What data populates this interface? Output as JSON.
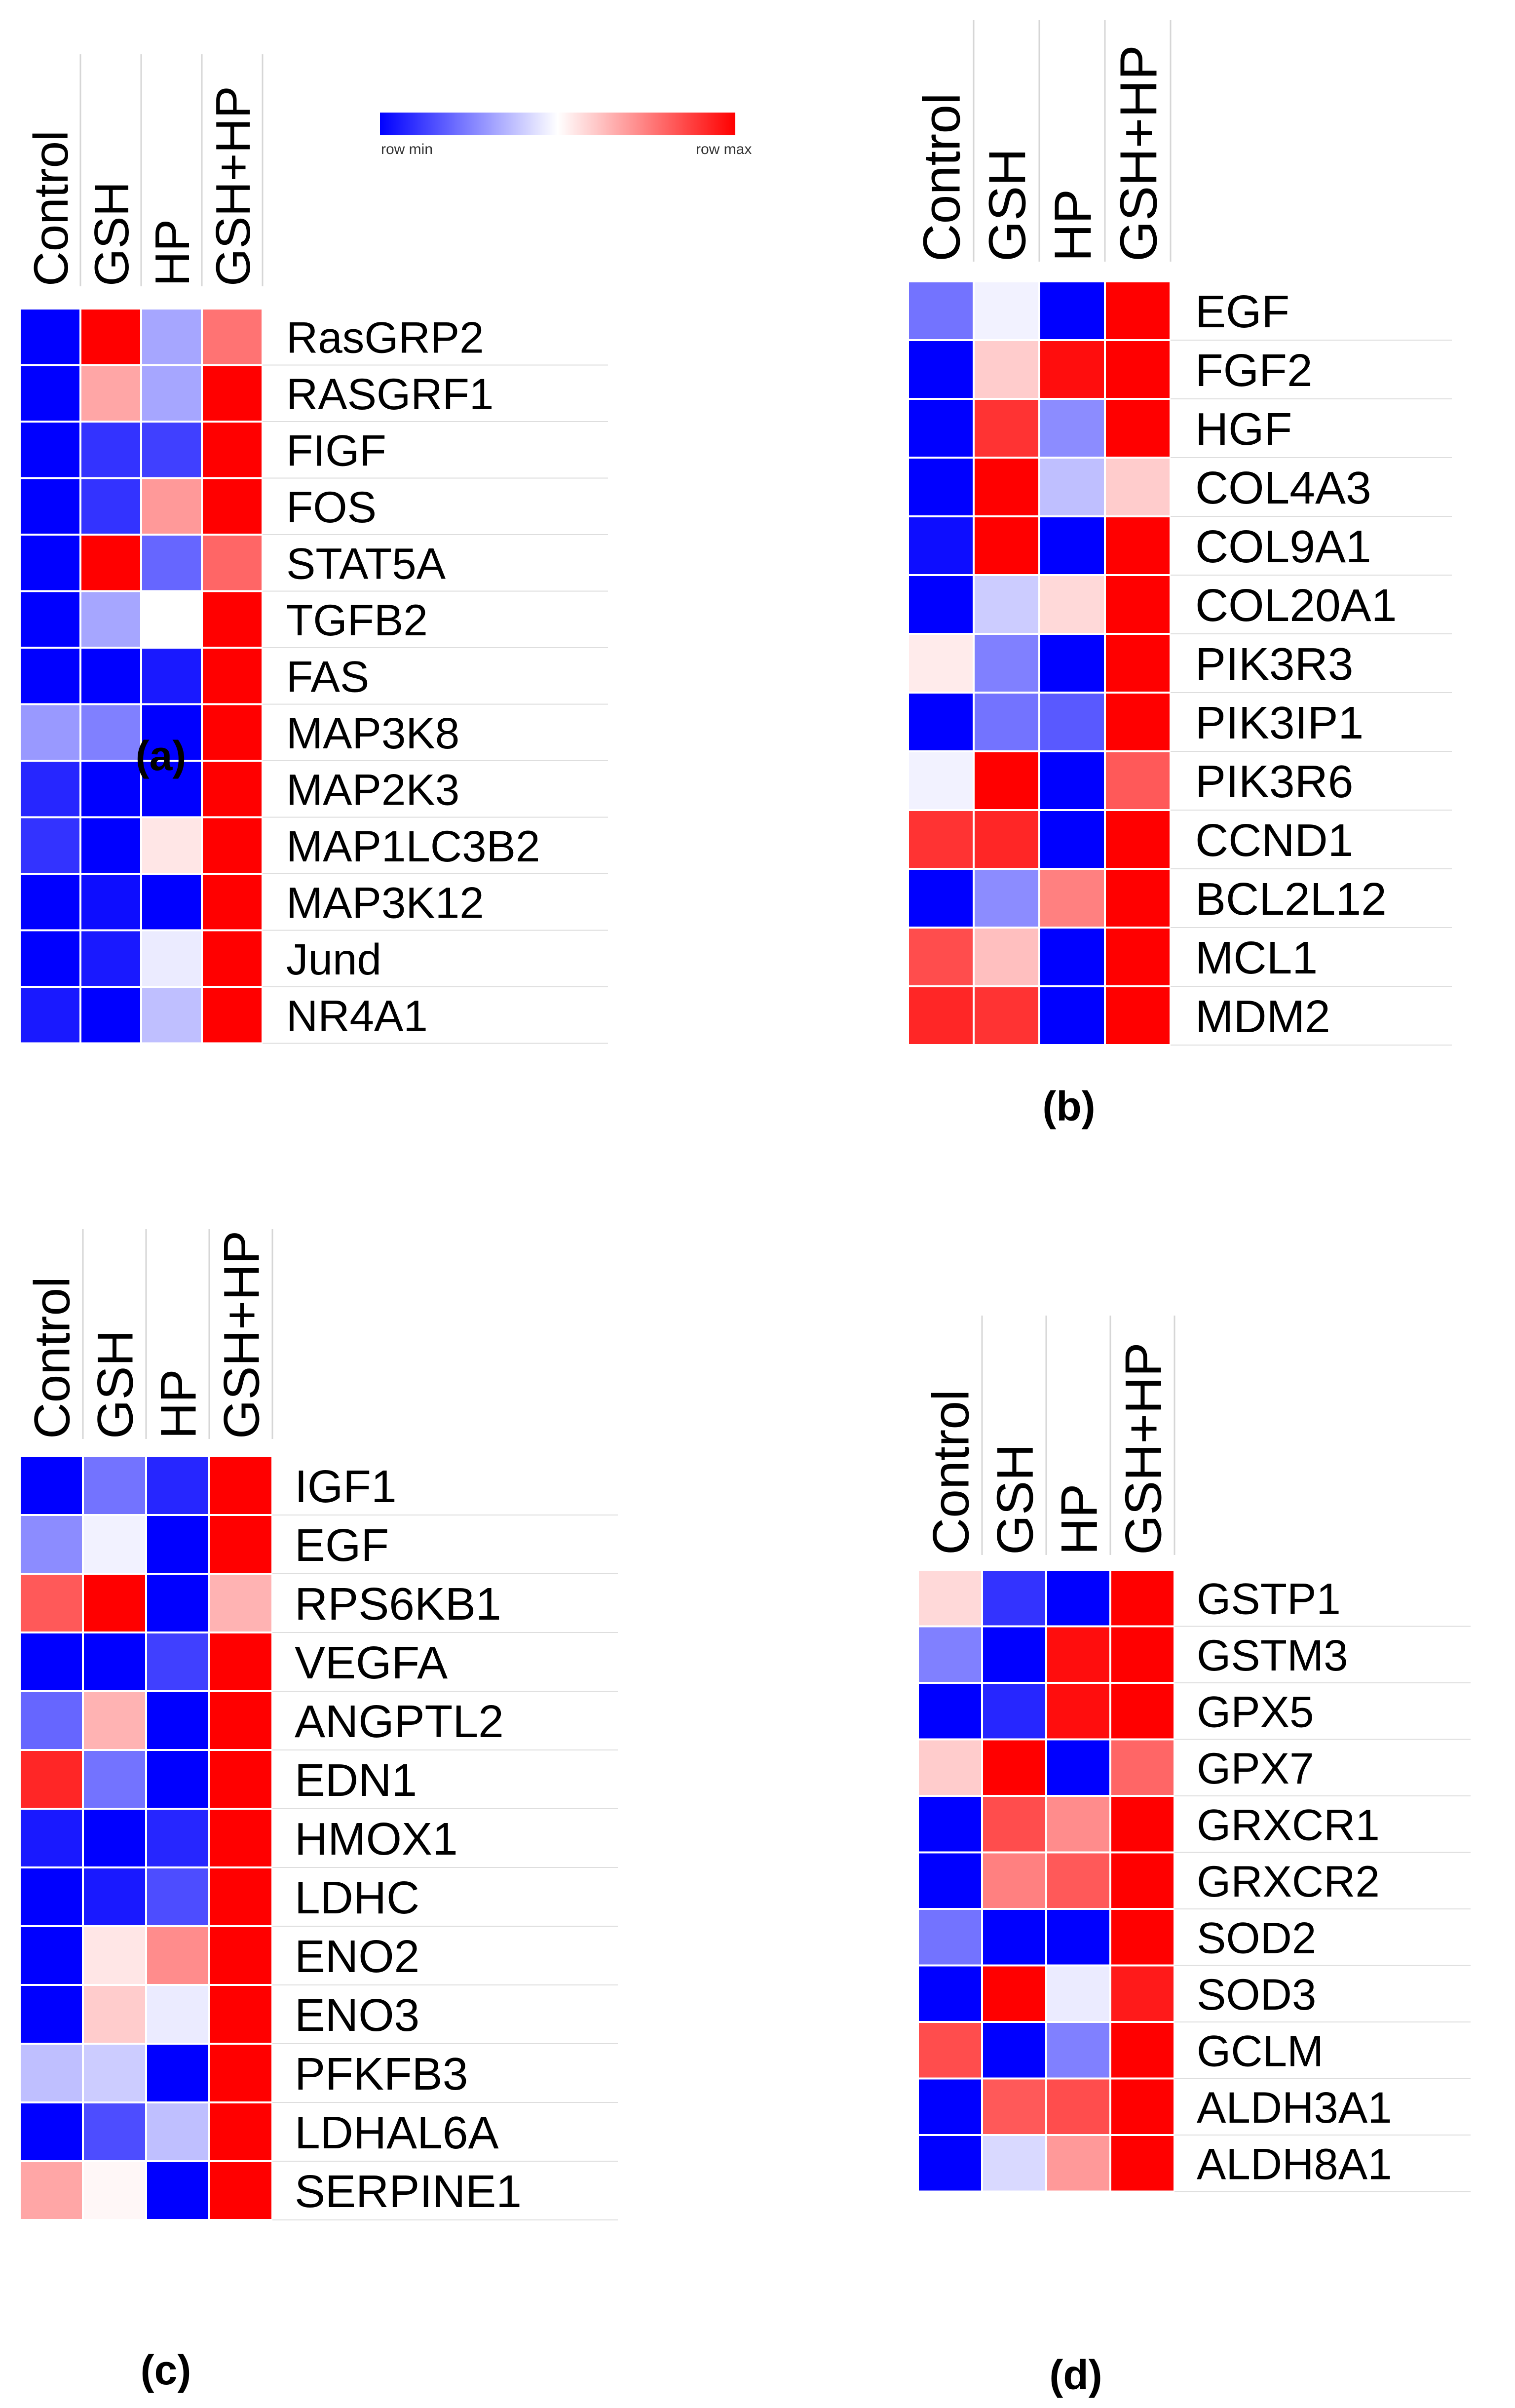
{
  "legend": {
    "min_label": "row min",
    "max_label": "row max",
    "colors": [
      "#0000ff",
      "#ffffff",
      "#ff0000"
    ]
  },
  "chart_data": [
    {
      "type": "heatmap",
      "panel": "(a)",
      "columns": [
        "Control",
        "GSH",
        "HP",
        "GSH+HP"
      ],
      "rows": [
        "RasGRP2",
        "RASGRF1",
        "FIGF",
        "FOS",
        "STAT5A",
        "TGFB2",
        "FAS",
        "MAP3K8",
        "MAP2K3",
        "MAP1LC3B2",
        "MAP3K12",
        "Jund",
        "NR4A1"
      ],
      "values": [
        [
          -1.0,
          1.0,
          -0.35,
          0.55
        ],
        [
          -1.0,
          0.35,
          -0.35,
          1.0
        ],
        [
          -1.0,
          -0.8,
          -0.75,
          1.0
        ],
        [
          -1.0,
          -0.8,
          0.4,
          1.0
        ],
        [
          -1.0,
          1.0,
          -0.6,
          0.6
        ],
        [
          -1.0,
          -0.35,
          0.0,
          1.0
        ],
        [
          -1.0,
          -1.0,
          -0.9,
          1.0
        ],
        [
          -0.4,
          -0.5,
          -1.0,
          1.0
        ],
        [
          -0.85,
          -1.0,
          -1.0,
          1.0
        ],
        [
          -0.8,
          -1.0,
          0.1,
          1.0
        ],
        [
          -1.0,
          -0.95,
          -1.0,
          1.0
        ],
        [
          -1.0,
          -0.9,
          -0.08,
          1.0
        ],
        [
          -0.9,
          -1.0,
          -0.25,
          1.0
        ]
      ]
    },
    {
      "type": "heatmap",
      "panel": "(b)",
      "columns": [
        "Control",
        "GSH",
        "HP",
        "GSH+HP"
      ],
      "rows": [
        "EGF",
        "FGF2",
        "HGF",
        "COL4A3",
        "COL9A1",
        "COL20A1",
        "PIK3R3",
        "PIK3IP1",
        "PIK3R6",
        "CCND1",
        "BCL2L12",
        "MCL1",
        "MDM2"
      ],
      "values": [
        [
          -0.55,
          -0.05,
          -1.0,
          1.0
        ],
        [
          -1.0,
          0.2,
          0.95,
          1.0
        ],
        [
          -1.0,
          0.8,
          -0.45,
          1.0
        ],
        [
          -1.0,
          1.0,
          -0.25,
          0.2
        ],
        [
          -0.95,
          1.0,
          -1.0,
          1.0
        ],
        [
          -1.0,
          -0.2,
          0.15,
          1.0
        ],
        [
          0.08,
          -0.5,
          -1.0,
          1.0
        ],
        [
          -1.0,
          -0.55,
          -0.65,
          1.0
        ],
        [
          -0.05,
          1.0,
          -1.0,
          0.65
        ],
        [
          0.8,
          0.85,
          -1.0,
          1.0
        ],
        [
          -1.0,
          -0.45,
          0.5,
          1.0
        ],
        [
          0.7,
          0.25,
          -1.0,
          1.0
        ],
        [
          0.85,
          0.8,
          -1.0,
          1.0
        ]
      ]
    },
    {
      "type": "heatmap",
      "panel": "(c)",
      "columns": [
        "Control",
        "GSH",
        "HP",
        "GSH+HP"
      ],
      "rows": [
        "IGF1",
        "EGF",
        "RPS6KB1",
        "VEGFA",
        "ANGPTL2",
        "EDN1",
        "HMOX1",
        "LDHC",
        "ENO2",
        "ENO3",
        "PFKFB3",
        "LDHAL6A",
        "SERPINE1"
      ],
      "values": [
        [
          -1.0,
          -0.55,
          -0.85,
          1.0
        ],
        [
          -0.45,
          -0.05,
          -1.0,
          1.0
        ],
        [
          0.65,
          1.0,
          -1.0,
          0.3
        ],
        [
          -1.0,
          -1.0,
          -0.75,
          1.0
        ],
        [
          -0.6,
          0.3,
          -1.0,
          1.0
        ],
        [
          0.85,
          -0.55,
          -1.0,
          1.0
        ],
        [
          -0.9,
          -1.0,
          -0.85,
          1.0
        ],
        [
          -1.0,
          -0.9,
          -0.7,
          1.0
        ],
        [
          -1.0,
          0.1,
          0.45,
          1.0
        ],
        [
          -1.0,
          0.2,
          -0.08,
          1.0
        ],
        [
          -0.25,
          -0.2,
          -1.0,
          1.0
        ],
        [
          -1.0,
          -0.7,
          -0.25,
          1.0
        ],
        [
          0.35,
          0.03,
          -1.0,
          1.0
        ]
      ]
    },
    {
      "type": "heatmap",
      "panel": "(d)",
      "columns": [
        "Control",
        "GSH",
        "HP",
        "GSH+HP"
      ],
      "rows": [
        "GSTP1",
        "GSTM3",
        "GPX5",
        "GPX7",
        "GRXCR1",
        "GRXCR2",
        "SOD2",
        "SOD3",
        "GCLM",
        "ALDH3A1",
        "ALDH8A1"
      ],
      "values": [
        [
          0.15,
          -0.8,
          -1.0,
          1.0
        ],
        [
          -0.5,
          -1.0,
          0.95,
          1.0
        ],
        [
          -1.0,
          -0.85,
          0.95,
          1.0
        ],
        [
          0.2,
          1.0,
          -1.0,
          0.6
        ],
        [
          -1.0,
          0.7,
          0.45,
          1.0
        ],
        [
          -1.0,
          0.5,
          0.65,
          1.0
        ],
        [
          -0.55,
          -1.0,
          -1.0,
          1.0
        ],
        [
          -1.0,
          1.0,
          -0.08,
          0.9
        ],
        [
          0.7,
          -1.0,
          -0.5,
          1.0
        ],
        [
          -1.0,
          0.65,
          0.7,
          1.0
        ],
        [
          -1.0,
          -0.15,
          0.4,
          1.0
        ]
      ]
    }
  ]
}
